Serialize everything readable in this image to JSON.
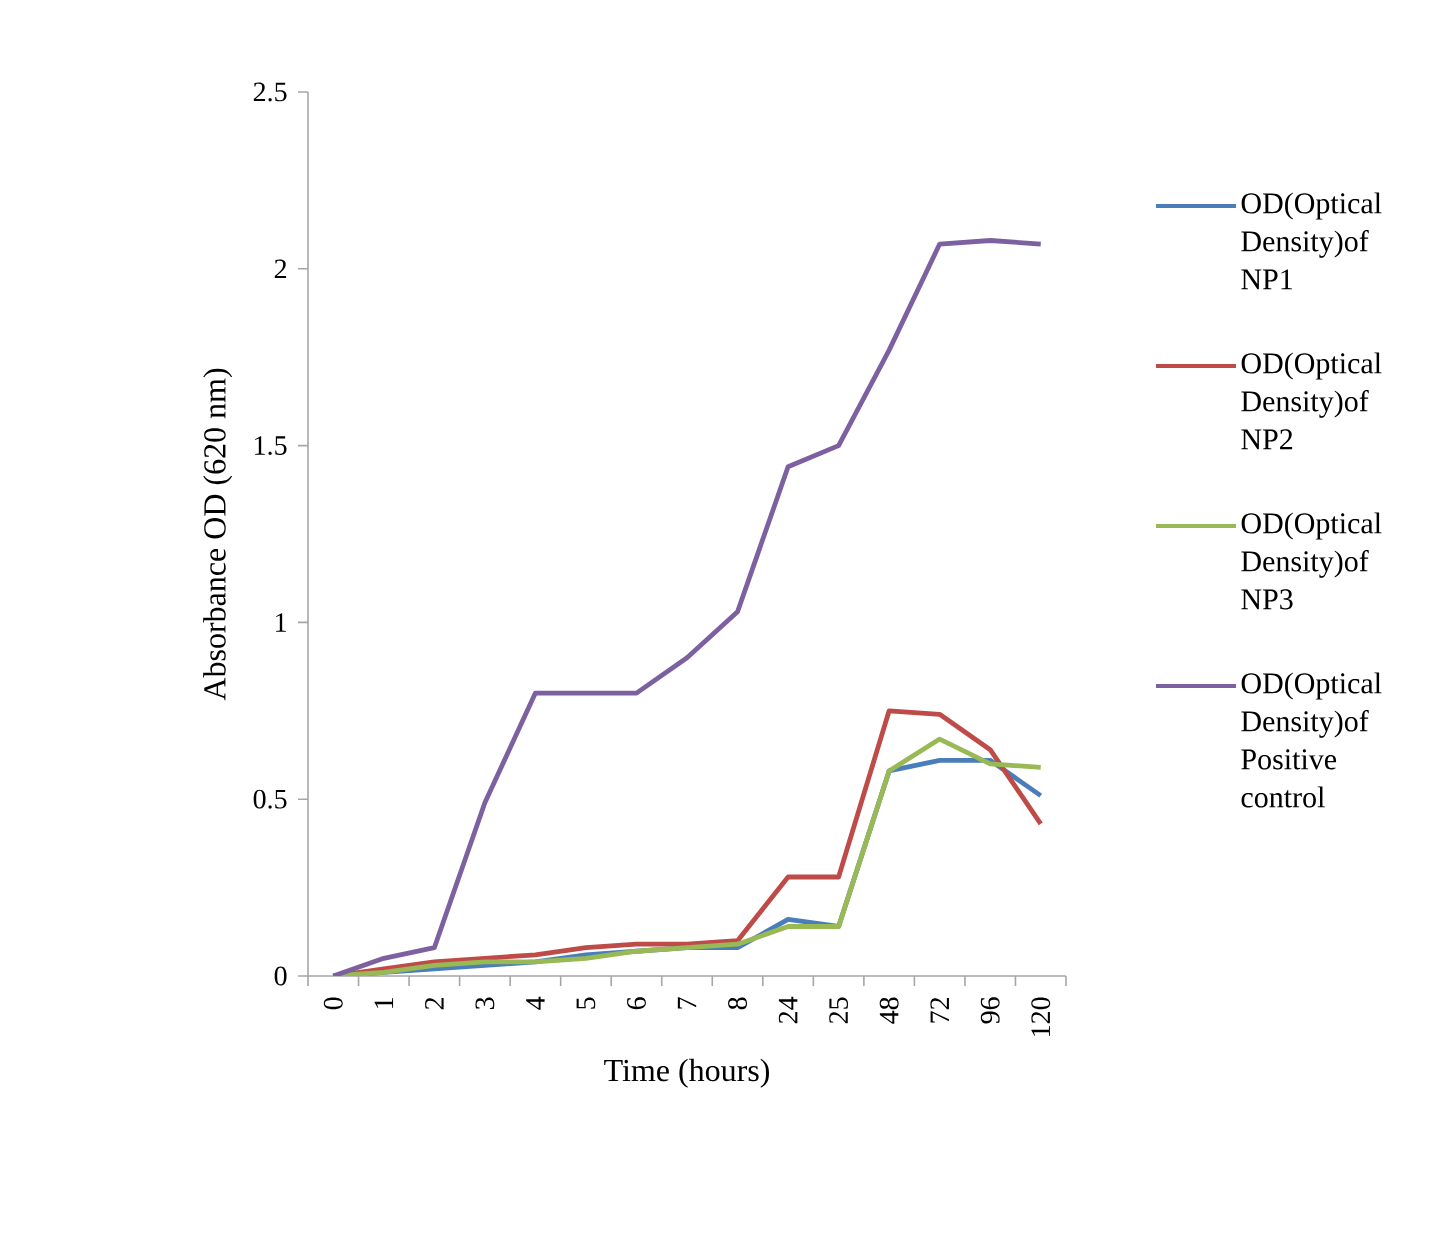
{
  "chart_data": {
    "type": "line",
    "xlabel": "Time (hours)",
    "ylabel": "Absorbance OD (620 nm)",
    "categories": [
      "0",
      "1",
      "2",
      "3",
      "4",
      "5",
      "6",
      "7",
      "8",
      "24",
      "25",
      "48",
      "72",
      "96",
      "120"
    ],
    "ylim": [
      0,
      2.5
    ],
    "yticks": [
      0,
      0.5,
      1,
      1.5,
      2,
      2.5
    ],
    "grid": false,
    "legend": "right",
    "marker": "none",
    "line_style": "solid",
    "series": [
      {
        "name": "OD(Optical Density)of NP1",
        "color": "#4a7ebb",
        "values": [
          0,
          0.01,
          0.02,
          0.03,
          0.04,
          0.06,
          0.07,
          0.08,
          0.08,
          0.16,
          0.14,
          0.58,
          0.61,
          0.61,
          0.51
        ]
      },
      {
        "name": "OD(Optical Density)of NP2",
        "color": "#be4b48",
        "values": [
          0,
          0.02,
          0.04,
          0.05,
          0.06,
          0.08,
          0.09,
          0.09,
          0.1,
          0.28,
          0.28,
          0.75,
          0.74,
          0.64,
          0.43
        ]
      },
      {
        "name": "OD(Optical Density)of NP3",
        "color": "#98b954",
        "values": [
          0,
          0.01,
          0.03,
          0.04,
          0.04,
          0.05,
          0.07,
          0.08,
          0.09,
          0.14,
          0.14,
          0.58,
          0.67,
          0.6,
          0.59
        ]
      },
      {
        "name": "OD(Optical Density)of Positive control",
        "color": "#7d60a0",
        "values": [
          0,
          0.05,
          0.08,
          0.49,
          0.8,
          0.8,
          0.8,
          0.9,
          1.03,
          1.44,
          1.5,
          1.77,
          2.07,
          2.08,
          2.07
        ]
      }
    ]
  }
}
